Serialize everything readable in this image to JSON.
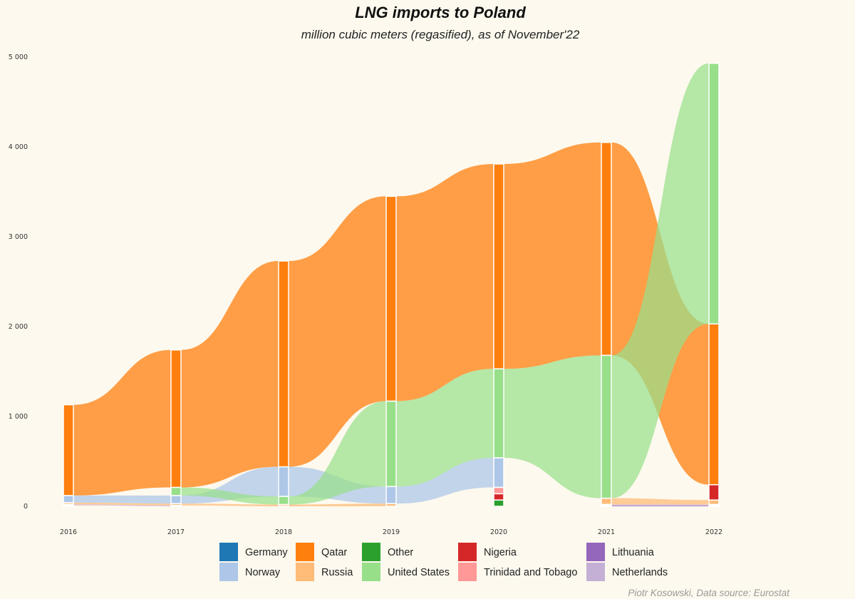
{
  "chart_data": {
    "type": "alluvial",
    "title": "LNG imports to Poland",
    "subtitle": "million cubic meters (regasified), as of November'22",
    "caption": "Piotr Kosowski, Data source: Eurostat",
    "ylim": [
      0,
      5000
    ],
    "yticks": [
      {
        "value": 0,
        "label": "0"
      },
      {
        "value": 1000,
        "label": "1 000"
      },
      {
        "value": 2000,
        "label": "2 000"
      },
      {
        "value": 3000,
        "label": "3 000"
      },
      {
        "value": 4000,
        "label": "4 000"
      },
      {
        "value": 5000,
        "label": "5 000"
      }
    ],
    "x": [
      "2016",
      "2017",
      "2018",
      "2019",
      "2020",
      "2021",
      "2022"
    ],
    "legend": {
      "position": "bottom",
      "entries": [
        {
          "name": "Germany",
          "color": "#1f77b4"
        },
        {
          "name": "Norway",
          "color": "#aec7e8"
        },
        {
          "name": "Qatar",
          "color": "#ff7f0e"
        },
        {
          "name": "Russia",
          "color": "#ffbb78"
        },
        {
          "name": "Other",
          "color": "#2ca02c"
        },
        {
          "name": "United States",
          "color": "#98df8a"
        },
        {
          "name": "Nigeria",
          "color": "#d62728"
        },
        {
          "name": "Trinidad and Tobago",
          "color": "#ff9896"
        },
        {
          "name": "Lithuania",
          "color": "#9467bd"
        },
        {
          "name": "Netherlands",
          "color": "#c5b0d5"
        }
      ]
    },
    "series": [
      {
        "name": "Germany",
        "color": "#1f77b4",
        "values": [
          0,
          0,
          0,
          0,
          0,
          0,
          0
        ]
      },
      {
        "name": "Norway",
        "color": "#aec7e8",
        "values": [
          80,
          90,
          330,
          190,
          330,
          0,
          0
        ]
      },
      {
        "name": "Qatar",
        "color": "#ff7f0e",
        "values": [
          1010,
          1530,
          2290,
          2280,
          2280,
          2370,
          1790
        ]
      },
      {
        "name": "Russia",
        "color": "#ffbb78",
        "values": [
          20,
          20,
          20,
          30,
          0,
          70,
          50
        ]
      },
      {
        "name": "Other",
        "color": "#2ca02c",
        "values": [
          0,
          0,
          0,
          0,
          70,
          0,
          0
        ]
      },
      {
        "name": "United States",
        "color": "#98df8a",
        "values": [
          0,
          90,
          90,
          950,
          990,
          1590,
          2900
        ]
      },
      {
        "name": "Nigeria",
        "color": "#d62728",
        "values": [
          0,
          0,
          0,
          0,
          70,
          0,
          170
        ]
      },
      {
        "name": "Trinidad and Tobago",
        "color": "#ff9896",
        "values": [
          0,
          0,
          0,
          0,
          70,
          0,
          0
        ]
      },
      {
        "name": "Lithuania",
        "color": "#9467bd",
        "values": [
          10,
          0,
          0,
          0,
          0,
          10,
          10
        ]
      },
      {
        "name": "Netherlands",
        "color": "#c5b0d5",
        "values": [
          10,
          10,
          0,
          0,
          0,
          10,
          10
        ]
      }
    ],
    "stack_order": [
      [
        "Qatar",
        "Norway",
        "Russia",
        "Netherlands",
        "Lithuania"
      ],
      [
        "Qatar",
        "United States",
        "Norway",
        "Russia",
        "Netherlands"
      ],
      [
        "Qatar",
        "Norway",
        "United States",
        "Russia"
      ],
      [
        "Qatar",
        "United States",
        "Norway",
        "Russia"
      ],
      [
        "Qatar",
        "United States",
        "Norway",
        "Trinidad and Tobago",
        "Nigeria",
        "Other"
      ],
      [
        "Qatar",
        "United States",
        "Russia",
        "Netherlands",
        "Lithuania"
      ],
      [
        "United States",
        "Qatar",
        "Nigeria",
        "Russia",
        "Netherlands",
        "Lithuania"
      ]
    ]
  }
}
